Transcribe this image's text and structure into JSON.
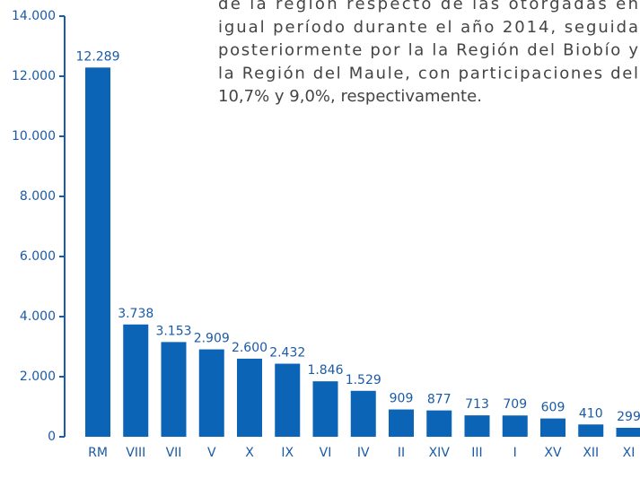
{
  "chart_data": {
    "type": "bar",
    "annotation": [
      "de la región respecto de las otorgadas en",
      "igual período durante el año 2014, seguida",
      "posteriormente por la la Región del Biobío y",
      "la Región del Maule, con participaciones del",
      "10,7% y 9,0%, respectivamente."
    ],
    "categories": [
      "RM",
      "VIII",
      "VII",
      "V",
      "X",
      "IX",
      "VI",
      "IV",
      "II",
      "XIV",
      "III",
      "I",
      "XV",
      "XII",
      "XI"
    ],
    "values": [
      12289,
      3738,
      3153,
      2909,
      2600,
      2432,
      1846,
      1529,
      909,
      877,
      713,
      709,
      609,
      410,
      299
    ],
    "value_labels": [
      "12.289",
      "3.738",
      "3.153",
      "2.909",
      "2.600",
      "2.432",
      "1.846",
      "1.529",
      "909",
      "877",
      "713",
      "709",
      "609",
      "410",
      "299"
    ],
    "color": "#0b64b5",
    "ylim": [
      0,
      14000
    ],
    "yticks": [
      0,
      {
        "value": 2000,
        "label": "2.000"
      },
      {
        "value": 4000,
        "label": "4.000"
      },
      {
        "value": 6000,
        "label": "6.000"
      },
      {
        "value": 8000,
        "label": "8.000"
      },
      {
        "value": 10000,
        "label": "10.000"
      },
      {
        "value": 12000,
        "label": "12.000"
      },
      {
        "value": 14000,
        "label": "14.000"
      }
    ],
    "grid": false
  }
}
